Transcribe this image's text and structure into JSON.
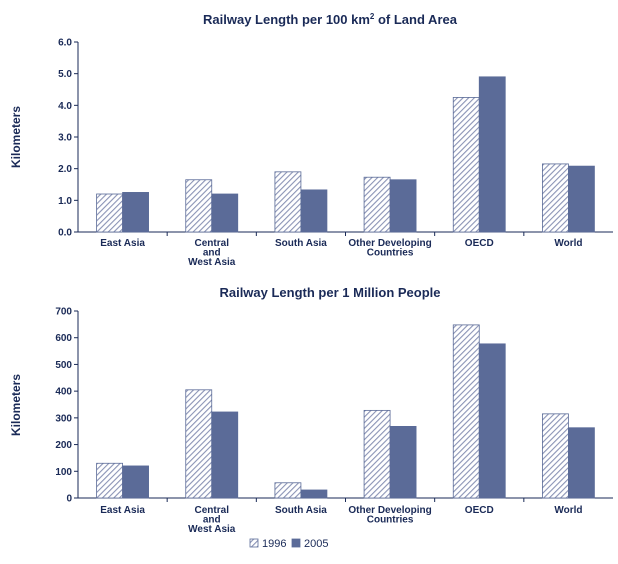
{
  "colors": {
    "s1996_hatch": "#8a93b5",
    "s2005": "#5b6b98",
    "text": "#1a2a57",
    "axis": "#1a2a57"
  },
  "legend": [
    {
      "name": "1996"
    },
    {
      "name": "2005"
    }
  ],
  "chart_data": [
    {
      "type": "bar",
      "title_main": "Railway Length per 100 km",
      "title_sup": "2",
      "title_end": " of Land Area",
      "ylabel": "Kilometers",
      "ylim": [
        0,
        6
      ],
      "yticks": [
        "0.0",
        "1.0",
        "2.0",
        "3.0",
        "4.0",
        "5.0",
        "6.0"
      ],
      "categories": [
        [
          "East Asia"
        ],
        [
          "Central",
          "and",
          "West Asia"
        ],
        [
          "South Asia"
        ],
        [
          "Other Developing",
          "Countries"
        ],
        [
          "OECD"
        ],
        [
          "World"
        ]
      ],
      "series": [
        {
          "name": "1996",
          "values": [
            1.2,
            1.65,
            1.9,
            1.73,
            4.25,
            2.15
          ]
        },
        {
          "name": "2005",
          "values": [
            1.25,
            1.2,
            1.33,
            1.65,
            4.9,
            2.08
          ]
        }
      ]
    },
    {
      "type": "bar",
      "title_main": "Railway Length per 1 Million People",
      "title_sup": "",
      "title_end": "",
      "ylabel": "Kilometers",
      "ylim": [
        0,
        700
      ],
      "yticks": [
        "0",
        "100",
        "200",
        "300",
        "400",
        "500",
        "600",
        "700"
      ],
      "categories": [
        [
          "East Asia"
        ],
        [
          "Central",
          "and",
          "West Asia"
        ],
        [
          "South Asia"
        ],
        [
          "Other Developing",
          "Countries"
        ],
        [
          "OECD"
        ],
        [
          "World"
        ]
      ],
      "series": [
        {
          "name": "1996",
          "values": [
            130,
            405,
            57,
            328,
            648,
            315
          ]
        },
        {
          "name": "2005",
          "values": [
            120,
            322,
            30,
            268,
            577,
            263
          ]
        }
      ]
    }
  ]
}
